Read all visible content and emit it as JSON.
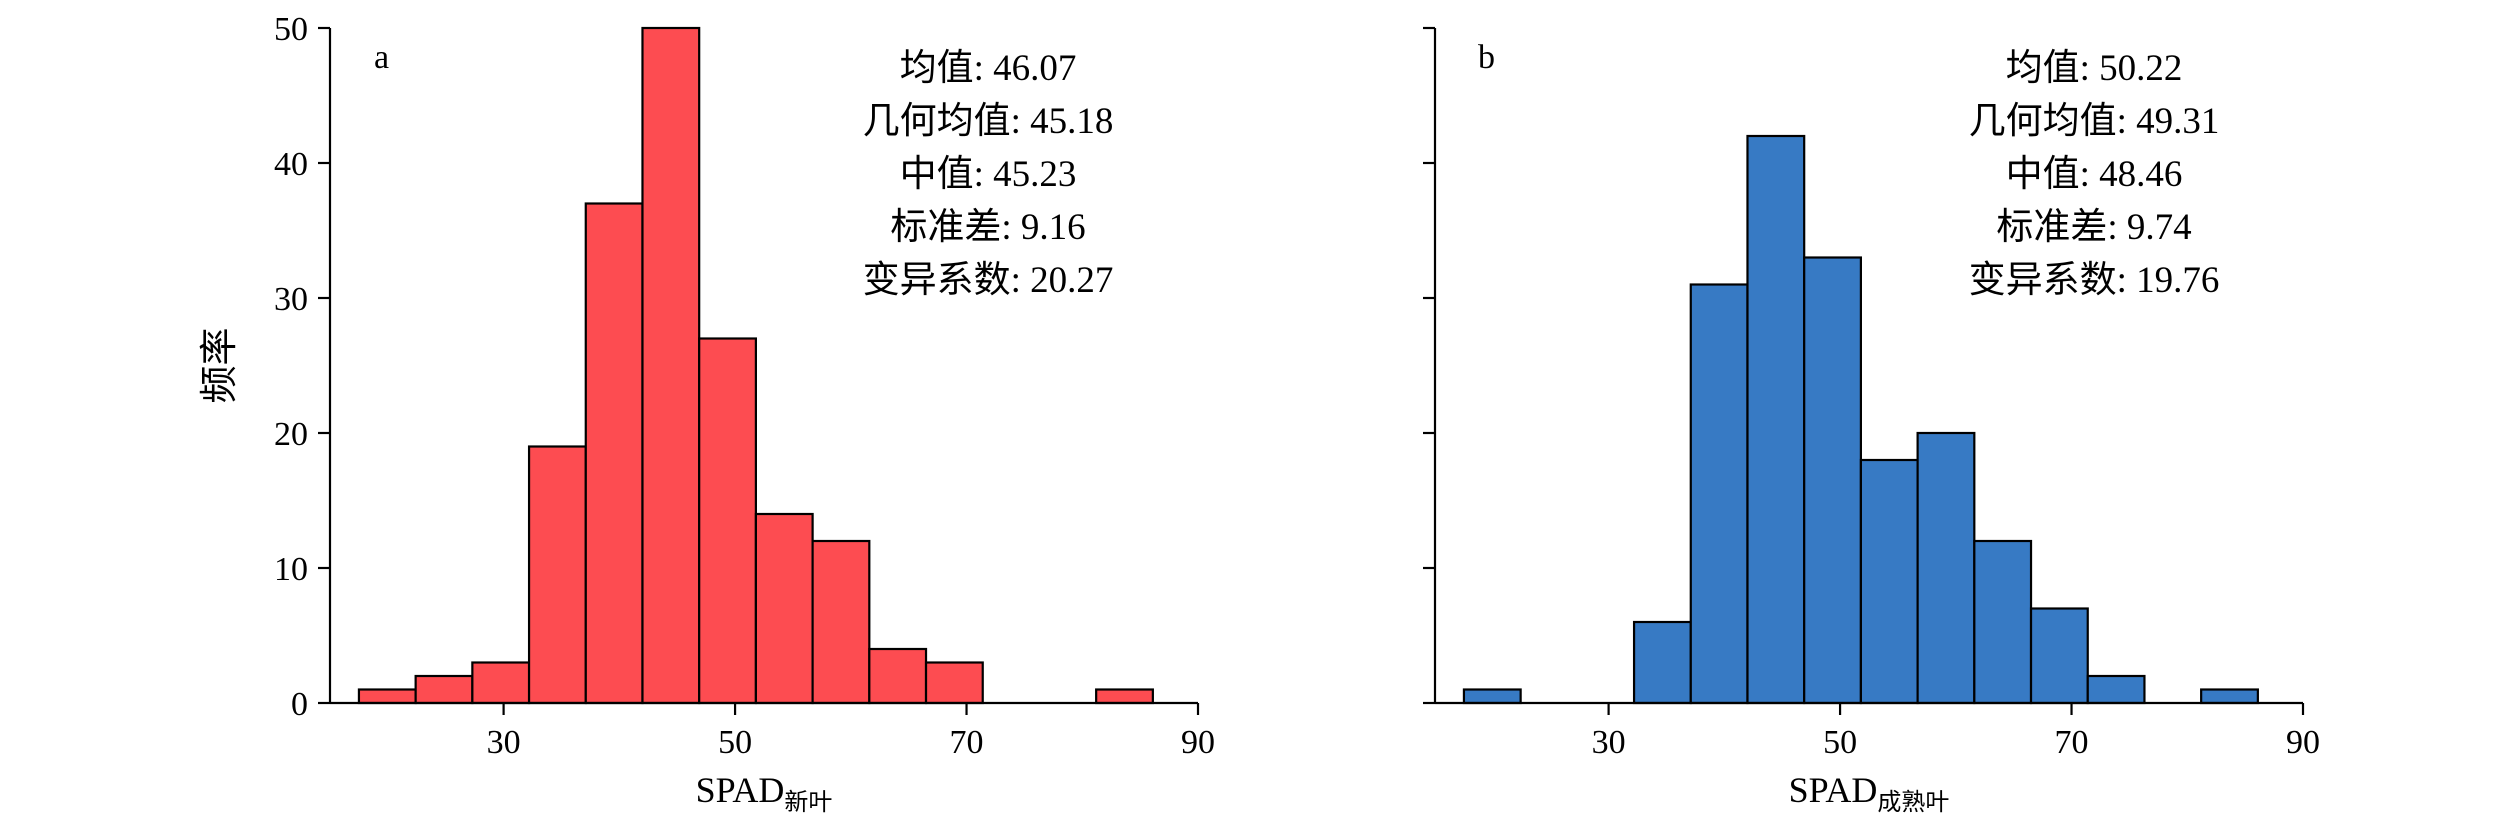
{
  "chart_data": [
    {
      "type": "bar",
      "panel_label": "a",
      "ylabel": "频率",
      "xlabel_main": "SPAD",
      "xlabel_sub": "新叶",
      "xlim": [
        15,
        90
      ],
      "ylim": [
        0,
        50
      ],
      "x_ticks": [
        30,
        50,
        70,
        90
      ],
      "y_ticks": [
        0,
        10,
        20,
        30,
        40,
        50
      ],
      "bin_width": 4.9,
      "bin_start": 17.5,
      "bar_color": "#fd4c51",
      "counts": [
        1,
        2,
        3,
        19,
        37,
        50,
        27,
        14,
        12,
        4,
        3,
        0,
        0,
        1
      ],
      "stats": [
        "均值: 46.07",
        "几何均值: 45.18",
        "中值: 45.23",
        "标准差: 9.16",
        "变异系数: 20.27"
      ]
    },
    {
      "type": "bar",
      "panel_label": "b",
      "ylabel": "",
      "xlabel_main": "SPAD",
      "xlabel_sub": "成熟叶",
      "xlim": [
        15,
        90
      ],
      "ylim": [
        0,
        50
      ],
      "x_ticks": [
        30,
        50,
        70,
        90
      ],
      "y_ticks": [
        0,
        10,
        20,
        30,
        40,
        50
      ],
      "bin_width": 4.9,
      "bin_start": 17.5,
      "bar_color": "#377ac4",
      "counts": [
        1,
        0,
        0,
        6,
        31,
        42,
        33,
        18,
        20,
        12,
        7,
        2,
        0,
        1
      ],
      "stats": [
        "均值: 50.22",
        "几何均值: 49.31",
        "中值: 48.46",
        "标准差: 9.74",
        "变异系数: 19.76"
      ]
    }
  ]
}
